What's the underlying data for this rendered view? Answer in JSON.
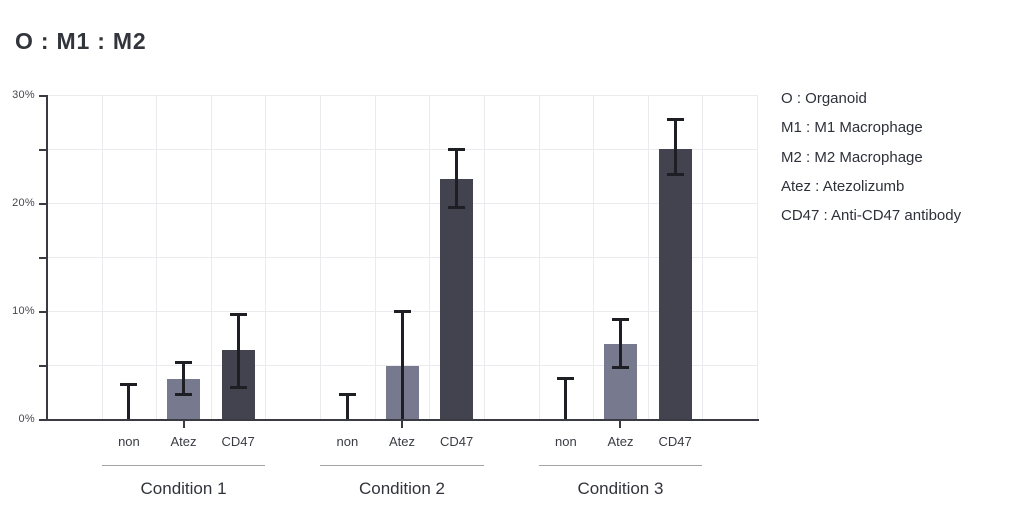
{
  "chart_data": {
    "type": "bar",
    "title": "O : M1 : M2",
    "xlabel": "",
    "ylabel": "",
    "ylim": [
      0,
      30
    ],
    "y_major_ticks": [
      0,
      10,
      20,
      30
    ],
    "y_minor_ticks": [
      5,
      15,
      25
    ],
    "y_tick_suffix": "%",
    "grid": true,
    "legend_position": "right",
    "categories_per_group": [
      "non",
      "Atez",
      "CD47"
    ],
    "groups": [
      {
        "label": "Condition 1",
        "bars": [
          {
            "category": "non",
            "value": 0,
            "err_lo": 0,
            "err_hi": 3.2
          },
          {
            "category": "Atez",
            "value": 3.7,
            "err_lo": 2.2,
            "err_hi": 5.3
          },
          {
            "category": "CD47",
            "value": 6.4,
            "err_lo": 2.9,
            "err_hi": 9.7
          }
        ]
      },
      {
        "label": "Condition 2",
        "bars": [
          {
            "category": "non",
            "value": 0,
            "err_lo": 0,
            "err_hi": 2.3
          },
          {
            "category": "Atez",
            "value": 4.9,
            "err_lo": 0,
            "err_hi": 10.0
          },
          {
            "category": "CD47",
            "value": 22.2,
            "err_lo": 19.5,
            "err_hi": 25.0
          }
        ]
      },
      {
        "label": "Condition 3",
        "bars": [
          {
            "category": "non",
            "value": 0,
            "err_lo": 0,
            "err_hi": 3.8
          },
          {
            "category": "Atez",
            "value": 6.9,
            "err_lo": 4.7,
            "err_hi": 9.3
          },
          {
            "category": "CD47",
            "value": 25.0,
            "err_lo": 22.6,
            "err_hi": 27.8
          }
        ]
      }
    ],
    "bar_colors": {
      "non": "none",
      "Atez": "#777a8e",
      "CD47": "#42434f"
    },
    "error_bar_color": "#1e1f24",
    "axis_color": "#3a3b42",
    "grid_color": "#ebebef",
    "underline_color": "#a3a3a8",
    "legend": [
      "O : Organoid",
      "M1 : M1 Macrophage",
      "M2 : M2 Macrophage",
      "Atez : Atezolizumb",
      "CD47 : Anti-CD47 antibody"
    ]
  }
}
